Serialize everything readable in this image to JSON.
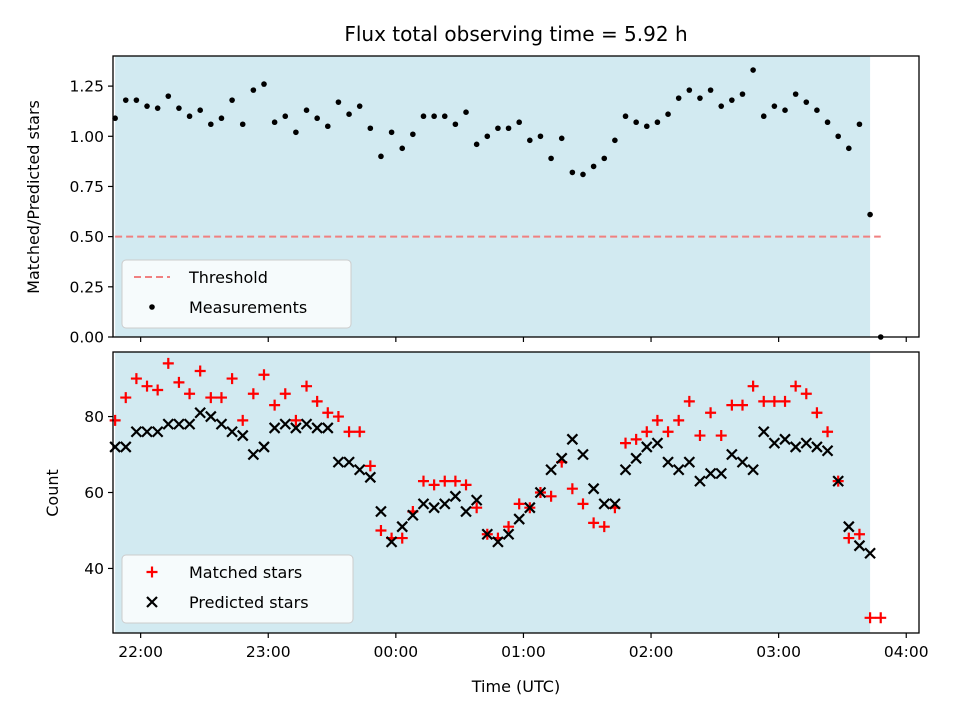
{
  "chart_data": [
    {
      "type": "scatter",
      "title": "Flux total observing time = 5.92 h",
      "xlabel": "",
      "ylabel": "Matched/Predicted stars",
      "ylim": [
        0,
        1.4
      ],
      "xlim": [
        "21:47",
        "04:06"
      ],
      "yticks": [
        0.0,
        0.25,
        0.5,
        0.75,
        1.0,
        1.25
      ],
      "ytick_labels": [
        "0.00",
        "0.25",
        "0.50",
        "0.75",
        "1.00",
        "1.25"
      ],
      "shaded_span": [
        "21:48",
        "03:43"
      ],
      "grid": false,
      "legend_position": "lower-left",
      "threshold": {
        "name": "Threshold",
        "y": 0.5,
        "x_start": "21:48",
        "x_end": "03:48",
        "color": "#f08080"
      },
      "series": [
        {
          "name": "Measurements",
          "color": "#000000",
          "marker": "dot",
          "points": [
            [
              "21:48",
              1.09
            ],
            [
              "21:53",
              1.18
            ],
            [
              "21:58",
              1.18
            ],
            [
              "22:03",
              1.15
            ],
            [
              "22:08",
              1.14
            ],
            [
              "22:13",
              1.2
            ],
            [
              "22:18",
              1.14
            ],
            [
              "22:23",
              1.1
            ],
            [
              "22:28",
              1.13
            ],
            [
              "22:33",
              1.06
            ],
            [
              "22:38",
              1.09
            ],
            [
              "22:43",
              1.18
            ],
            [
              "22:48",
              1.06
            ],
            [
              "22:53",
              1.23
            ],
            [
              "22:58",
              1.26
            ],
            [
              "23:03",
              1.07
            ],
            [
              "23:08",
              1.1
            ],
            [
              "23:13",
              1.02
            ],
            [
              "23:18",
              1.13
            ],
            [
              "23:23",
              1.09
            ],
            [
              "23:28",
              1.05
            ],
            [
              "23:33",
              1.17
            ],
            [
              "23:38",
              1.11
            ],
            [
              "23:43",
              1.15
            ],
            [
              "23:48",
              1.04
            ],
            [
              "23:53",
              0.9
            ],
            [
              "23:58",
              1.02
            ],
            [
              "00:03",
              0.94
            ],
            [
              "00:08",
              1.01
            ],
            [
              "00:13",
              1.1
            ],
            [
              "00:18",
              1.1
            ],
            [
              "00:23",
              1.1
            ],
            [
              "00:28",
              1.06
            ],
            [
              "00:33",
              1.12
            ],
            [
              "00:38",
              0.96
            ],
            [
              "00:43",
              1.0
            ],
            [
              "00:48",
              1.04
            ],
            [
              "00:53",
              1.04
            ],
            [
              "00:58",
              1.07
            ],
            [
              "01:03",
              0.98
            ],
            [
              "01:08",
              1.0
            ],
            [
              "01:13",
              0.89
            ],
            [
              "01:18",
              0.99
            ],
            [
              "01:23",
              0.82
            ],
            [
              "01:28",
              0.81
            ],
            [
              "01:33",
              0.85
            ],
            [
              "01:38",
              0.89
            ],
            [
              "01:43",
              0.98
            ],
            [
              "01:48",
              1.1
            ],
            [
              "01:53",
              1.07
            ],
            [
              "01:58",
              1.05
            ],
            [
              "02:03",
              1.07
            ],
            [
              "02:08",
              1.11
            ],
            [
              "02:13",
              1.19
            ],
            [
              "02:18",
              1.23
            ],
            [
              "02:23",
              1.19
            ],
            [
              "02:28",
              1.23
            ],
            [
              "02:33",
              1.15
            ],
            [
              "02:38",
              1.18
            ],
            [
              "02:43",
              1.21
            ],
            [
              "02:48",
              1.33
            ],
            [
              "02:53",
              1.1
            ],
            [
              "02:58",
              1.15
            ],
            [
              "03:03",
              1.13
            ],
            [
              "03:08",
              1.21
            ],
            [
              "03:13",
              1.17
            ],
            [
              "03:18",
              1.13
            ],
            [
              "03:23",
              1.07
            ],
            [
              "03:28",
              1.0
            ],
            [
              "03:33",
              0.94
            ],
            [
              "03:38",
              1.06
            ],
            [
              "03:43",
              0.61
            ],
            [
              "03:48",
              0.0
            ]
          ]
        }
      ]
    },
    {
      "type": "scatter",
      "title": "",
      "xlabel": "Time (UTC)",
      "ylabel": "Count",
      "ylim": [
        23,
        97
      ],
      "xlim": [
        "21:47",
        "04:06"
      ],
      "yticks": [
        40,
        60,
        80
      ],
      "ytick_labels": [
        "40",
        "60",
        "80"
      ],
      "xticks": [
        "22:00",
        "23:00",
        "00:00",
        "01:00",
        "02:00",
        "03:00",
        "04:00"
      ],
      "xtick_labels": [
        "22:00",
        "23:00",
        "00:00",
        "01:00",
        "02:00",
        "03:00",
        "04:00"
      ],
      "shaded_span": [
        "21:48",
        "03:43"
      ],
      "grid": false,
      "legend_position": "lower-left",
      "series": [
        {
          "name": "Matched stars",
          "color": "#ff0000",
          "marker": "plus",
          "points": [
            [
              "21:48",
              79
            ],
            [
              "21:53",
              85
            ],
            [
              "21:58",
              90
            ],
            [
              "22:03",
              88
            ],
            [
              "22:08",
              87
            ],
            [
              "22:13",
              94
            ],
            [
              "22:18",
              89
            ],
            [
              "22:23",
              86
            ],
            [
              "22:28",
              92
            ],
            [
              "22:33",
              85
            ],
            [
              "22:38",
              85
            ],
            [
              "22:43",
              90
            ],
            [
              "22:48",
              79
            ],
            [
              "22:53",
              86
            ],
            [
              "22:58",
              91
            ],
            [
              "23:03",
              83
            ],
            [
              "23:08",
              86
            ],
            [
              "23:13",
              79
            ],
            [
              "23:18",
              88
            ],
            [
              "23:23",
              84
            ],
            [
              "23:28",
              81
            ],
            [
              "23:33",
              80
            ],
            [
              "23:38",
              76
            ],
            [
              "23:43",
              76
            ],
            [
              "23:48",
              67
            ],
            [
              "23:53",
              50
            ],
            [
              "23:58",
              48
            ],
            [
              "00:03",
              48
            ],
            [
              "00:08",
              55
            ],
            [
              "00:13",
              63
            ],
            [
              "00:18",
              62
            ],
            [
              "00:23",
              63
            ],
            [
              "00:28",
              63
            ],
            [
              "00:33",
              62
            ],
            [
              "00:38",
              56
            ],
            [
              "00:43",
              49
            ],
            [
              "00:48",
              48
            ],
            [
              "00:53",
              51
            ],
            [
              "00:58",
              57
            ],
            [
              "01:03",
              56
            ],
            [
              "01:08",
              60
            ],
            [
              "01:13",
              59
            ],
            [
              "01:18",
              68
            ],
            [
              "01:23",
              61
            ],
            [
              "01:28",
              57
            ],
            [
              "01:33",
              52
            ],
            [
              "01:38",
              51
            ],
            [
              "01:43",
              56
            ],
            [
              "01:48",
              73
            ],
            [
              "01:53",
              74
            ],
            [
              "01:58",
              76
            ],
            [
              "02:03",
              79
            ],
            [
              "02:08",
              76
            ],
            [
              "02:13",
              79
            ],
            [
              "02:18",
              84
            ],
            [
              "02:23",
              75
            ],
            [
              "02:28",
              81
            ],
            [
              "02:33",
              75
            ],
            [
              "02:38",
              83
            ],
            [
              "02:43",
              83
            ],
            [
              "02:48",
              88
            ],
            [
              "02:53",
              84
            ],
            [
              "02:58",
              84
            ],
            [
              "03:03",
              84
            ],
            [
              "03:08",
              88
            ],
            [
              "03:13",
              86
            ],
            [
              "03:18",
              81
            ],
            [
              "03:23",
              76
            ],
            [
              "03:28",
              63
            ],
            [
              "03:33",
              48
            ],
            [
              "03:38",
              49
            ],
            [
              "03:43",
              27
            ],
            [
              "03:48",
              27
            ]
          ]
        },
        {
          "name": "Predicted stars",
          "color": "#000000",
          "marker": "x",
          "points": [
            [
              "21:48",
              72
            ],
            [
              "21:53",
              72
            ],
            [
              "21:58",
              76
            ],
            [
              "22:03",
              76
            ],
            [
              "22:08",
              76
            ],
            [
              "22:13",
              78
            ],
            [
              "22:18",
              78
            ],
            [
              "22:23",
              78
            ],
            [
              "22:28",
              81
            ],
            [
              "22:33",
              80
            ],
            [
              "22:38",
              78
            ],
            [
              "22:43",
              76
            ],
            [
              "22:48",
              75
            ],
            [
              "22:53",
              70
            ],
            [
              "22:58",
              72
            ],
            [
              "23:03",
              77
            ],
            [
              "23:08",
              78
            ],
            [
              "23:13",
              77
            ],
            [
              "23:18",
              78
            ],
            [
              "23:23",
              77
            ],
            [
              "23:28",
              77
            ],
            [
              "23:33",
              68
            ],
            [
              "23:38",
              68
            ],
            [
              "23:43",
              66
            ],
            [
              "23:48",
              64
            ],
            [
              "23:53",
              55
            ],
            [
              "23:58",
              47
            ],
            [
              "00:03",
              51
            ],
            [
              "00:08",
              54
            ],
            [
              "00:13",
              57
            ],
            [
              "00:18",
              56
            ],
            [
              "00:23",
              57
            ],
            [
              "00:28",
              59
            ],
            [
              "00:33",
              55
            ],
            [
              "00:38",
              58
            ],
            [
              "00:43",
              49
            ],
            [
              "00:48",
              47
            ],
            [
              "00:53",
              49
            ],
            [
              "00:58",
              53
            ],
            [
              "01:03",
              56
            ],
            [
              "01:08",
              60
            ],
            [
              "01:13",
              66
            ],
            [
              "01:18",
              69
            ],
            [
              "01:23",
              74
            ],
            [
              "01:28",
              70
            ],
            [
              "01:33",
              61
            ],
            [
              "01:38",
              57
            ],
            [
              "01:43",
              57
            ],
            [
              "01:48",
              66
            ],
            [
              "01:53",
              69
            ],
            [
              "01:58",
              72
            ],
            [
              "02:03",
              73
            ],
            [
              "02:08",
              68
            ],
            [
              "02:13",
              66
            ],
            [
              "02:18",
              68
            ],
            [
              "02:23",
              63
            ],
            [
              "02:28",
              65
            ],
            [
              "02:33",
              65
            ],
            [
              "02:38",
              70
            ],
            [
              "02:43",
              68
            ],
            [
              "02:48",
              66
            ],
            [
              "02:53",
              76
            ],
            [
              "02:58",
              73
            ],
            [
              "03:03",
              74
            ],
            [
              "03:08",
              72
            ],
            [
              "03:13",
              73
            ],
            [
              "03:18",
              72
            ],
            [
              "03:23",
              71
            ],
            [
              "03:28",
              63
            ],
            [
              "03:33",
              51
            ],
            [
              "03:38",
              46
            ],
            [
              "03:43",
              44
            ]
          ]
        }
      ]
    }
  ],
  "colors": {
    "shade": "#add8e6",
    "threshold": "#f08080",
    "matched": "#ff0000",
    "predicted": "#000000",
    "measurement": "#000000"
  }
}
